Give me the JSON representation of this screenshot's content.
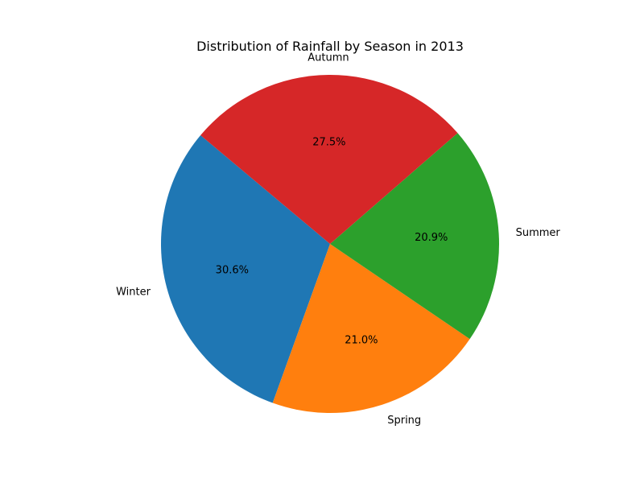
{
  "chart_data": {
    "type": "pie",
    "title": "Distribution of Rainfall by Season in 2013",
    "categories": [
      "Winter",
      "Spring",
      "Summer",
      "Autumn"
    ],
    "values": [
      30.6,
      21.0,
      20.9,
      27.5
    ],
    "value_labels": [
      "30.6%",
      "21.0%",
      "20.9%",
      "27.5%"
    ],
    "colors": [
      "#1f77b4",
      "#ff7f0e",
      "#2ca02c",
      "#d62728"
    ],
    "start_angle_deg": 140,
    "direction": "counterclockwise",
    "legend": "none"
  }
}
